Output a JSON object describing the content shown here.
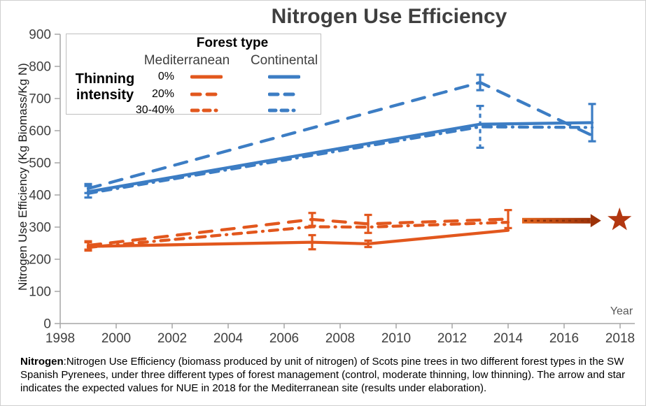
{
  "page": {
    "title": "Nitrogen Use Efficiency"
  },
  "axis": {
    "x_label": "Year"
  },
  "legend": {
    "header": "Forest type",
    "col_mediterranean": "Mediterranean",
    "col_continental": "Continental",
    "group_line1": "Thinning",
    "group_line2": "intensity",
    "rows": {
      "r0": "0%",
      "r1": "20%",
      "r2": "30-40%"
    }
  },
  "colors": {
    "mediterranean": "#E2571D",
    "continental": "#3C7DC4",
    "star": "#B23710",
    "arrow_from": "#E4661F",
    "arrow_to": "#9C3208",
    "arrow_dash": "#8F3008",
    "axis_line": "#A6A6A6",
    "tick_text": "#404040",
    "title_text": "#3F3F3F"
  },
  "chart_data": {
    "type": "line",
    "title": "Nitrogen Use Efficiency",
    "xlabel": "Year",
    "ylabel": "Nitrogen Use Efficiency  (Kg Biomass/Kg N)",
    "xlim": [
      1998,
      2018
    ],
    "ylim": [
      0,
      900
    ],
    "x_ticks": [
      1998,
      2000,
      2002,
      2004,
      2006,
      2008,
      2010,
      2012,
      2014,
      2016,
      2018
    ],
    "y_ticks": [
      0,
      100,
      200,
      300,
      400,
      500,
      600,
      700,
      800,
      900
    ],
    "grid": false,
    "legend_position": "top-left-inside",
    "series": [
      {
        "name": "Mediterranean 0%",
        "forest": "Mediterranean",
        "thinning": "0%",
        "color": "#E2571D",
        "style": "solid",
        "x": [
          1999,
          2007,
          2009,
          2014
        ],
        "y": [
          240,
          253,
          248,
          290
        ],
        "err": [
          13,
          22,
          10,
          0
        ]
      },
      {
        "name": "Mediterranean 20%",
        "forest": "Mediterranean",
        "thinning": "20%",
        "color": "#E2571D",
        "style": "dashed",
        "x": [
          1999,
          2007,
          2009,
          2014
        ],
        "y": [
          243,
          324,
          310,
          325
        ],
        "err": [
          13,
          20,
          28,
          28
        ]
      },
      {
        "name": "Mediterranean 30-40%",
        "forest": "Mediterranean",
        "thinning": "30-40%",
        "color": "#E2571D",
        "style": "dash-dot",
        "x": [
          1999,
          2007,
          2009,
          2014
        ],
        "y": [
          237,
          301,
          300,
          315
        ],
        "err": [
          0,
          0,
          0,
          0
        ]
      },
      {
        "name": "Continental 0%",
        "forest": "Continental",
        "thinning": "0%",
        "color": "#3C7DC4",
        "style": "solid",
        "x": [
          1999,
          2013,
          2017
        ],
        "y": [
          410,
          620,
          625
        ],
        "err": [
          18,
          0,
          58
        ]
      },
      {
        "name": "Continental 20%",
        "forest": "Continental",
        "thinning": "20%",
        "color": "#3C7DC4",
        "style": "dashed",
        "x": [
          1999,
          2013,
          2017
        ],
        "y": [
          420,
          750,
          585
        ],
        "err": [
          14,
          24,
          0
        ]
      },
      {
        "name": "Continental 30-40%",
        "forest": "Continental",
        "thinning": "30-40%",
        "color": "#3C7DC4",
        "style": "dash-dot",
        "x": [
          1999,
          2013,
          2017
        ],
        "y": [
          405,
          612,
          610
        ],
        "err": [
          0,
          65,
          0
        ],
        "err_style": "dashed"
      }
    ],
    "annotation": {
      "arrow": {
        "x_start": 2014.5,
        "x_end": 2017.32,
        "y": 320,
        "meaning": "expected NUE trend to 2018 (Mediterranean)"
      },
      "star": {
        "x": 2017.98,
        "y": 322,
        "meaning": "expected NUE value in 2018 (Mediterranean)"
      }
    }
  },
  "caption": {
    "lead": "Nitrogen",
    "rest": ":Nitrogen Use Efficiency (biomass produced by unit of nitrogen) of Scots pine trees in two different forest types in the SW Spanish Pyrenees, under three different types of forest management (control, moderate thinning, low thinning). The arrow and star indicates the expected values for NUE in 2018 for the Mediterranean site (results under elaboration)."
  }
}
